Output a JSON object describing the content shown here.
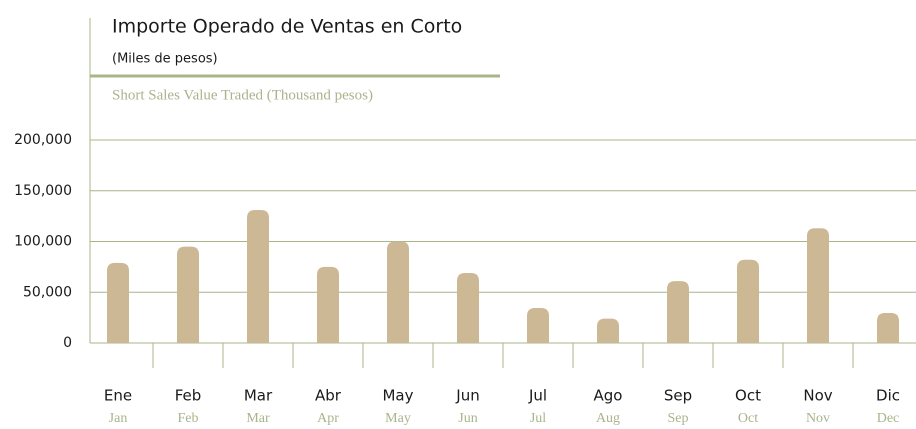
{
  "chart_data": {
    "type": "bar",
    "title": "Importe Operado de Ventas en Corto",
    "subtitle": "(Miles de pesos)",
    "subtitle_en": "Short Sales Value Traded (Thousand pesos)",
    "categories": [
      "Ene",
      "Feb",
      "Mar",
      "Abr",
      "May",
      "Jun",
      "Jul",
      "Ago",
      "Sep",
      "Oct",
      "Nov",
      "Dic"
    ],
    "categories_en": [
      "Jan",
      "Feb",
      "Mar",
      "Apr",
      "May",
      "Jun",
      "Jul",
      "Aug",
      "Sep",
      "Oct",
      "Nov",
      "Dec"
    ],
    "values": [
      79000,
      95000,
      131000,
      75000,
      100000,
      69000,
      34500,
      24000,
      61000,
      82000,
      113000,
      29500
    ],
    "color": "#cdb896",
    "ylim": [
      0,
      200000
    ],
    "yticks": [
      0,
      {
        "value": 50000,
        "label": "50,000"
      },
      {
        "value": 100000,
        "label": "100,000"
      },
      {
        "value": 150000,
        "label": "150,000"
      },
      {
        "value": 200000,
        "label": "200,000"
      }
    ],
    "grid": true
  }
}
